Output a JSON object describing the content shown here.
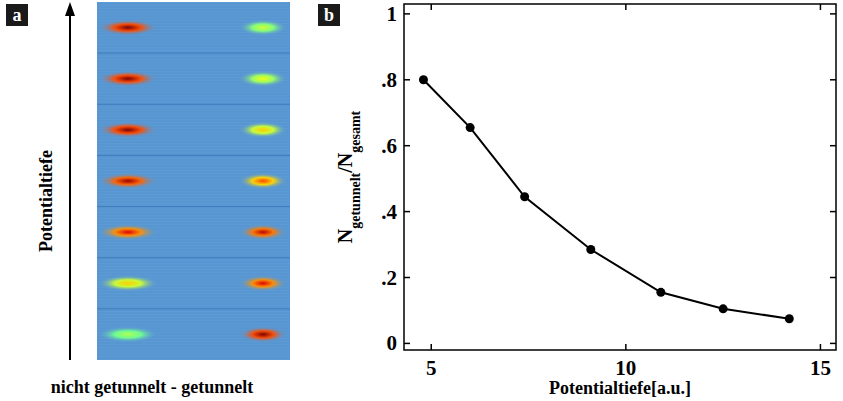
{
  "chart_data": [
    {
      "type": "image",
      "panel": "a",
      "y_label": "Potentialtiefe",
      "x_label": "nicht getunnelt - getunnelt",
      "rows": [
        {
          "not_tunneled": 0.3,
          "tunneled": 1.0
        },
        {
          "not_tunneled": 0.5,
          "tunneled": 0.85
        },
        {
          "not_tunneled": 0.85,
          "tunneled": 0.9
        },
        {
          "not_tunneled": 0.95,
          "tunneled": 0.7
        },
        {
          "not_tunneled": 1.0,
          "tunneled": 0.5
        },
        {
          "not_tunneled": 1.0,
          "tunneled": 0.4
        },
        {
          "not_tunneled": 1.0,
          "tunneled": 0.35
        }
      ]
    },
    {
      "type": "line",
      "panel": "b",
      "x_label": "Potentialtiefe[a.u.]",
      "y_label": [
        {
          "text": "N"
        },
        {
          "text": "getunnelt",
          "sub": true
        },
        {
          "text": "/N"
        },
        {
          "text": "gesamt",
          "sub": true
        }
      ],
      "x": [
        4.8,
        6.0,
        7.4,
        9.1,
        10.9,
        12.5,
        14.2
      ],
      "values": [
        0.8,
        0.655,
        0.445,
        0.285,
        0.155,
        0.105,
        0.075
      ],
      "color": "#000000",
      "marker": "circle",
      "line_style": "solid",
      "xlim": [
        4.3,
        15.4
      ],
      "xticks": [
        5,
        10,
        15
      ],
      "ylim": [
        -0.02,
        1.03
      ],
      "yticks": [
        0,
        {
          "value": 0.2,
          "label": ".2"
        },
        {
          "value": 0.4,
          "label": ".4"
        },
        {
          "value": 0.6,
          "label": ".6"
        },
        {
          "value": 0.8,
          "label": ".8"
        },
        1
      ]
    }
  ]
}
